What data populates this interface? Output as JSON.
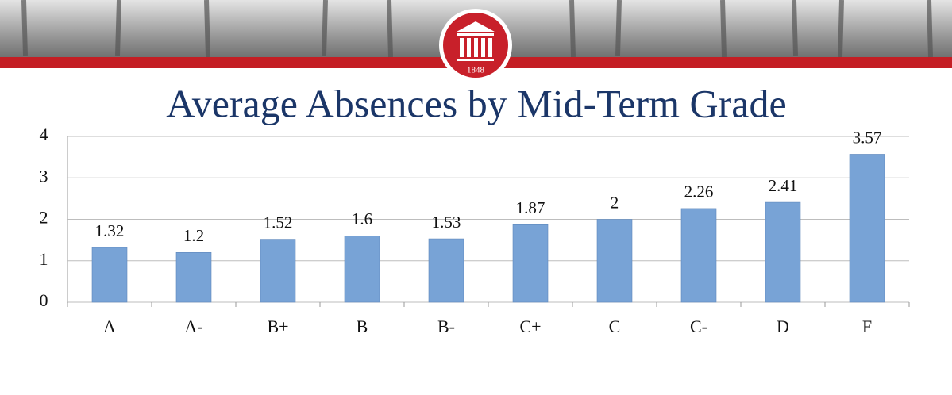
{
  "logo_text": "1848",
  "chart_data": {
    "type": "bar",
    "title": "Average Absences by Mid-Term Grade",
    "categories": [
      "A",
      "A-",
      "B+",
      "B",
      "B-",
      "C+",
      "C",
      "C-",
      "D",
      "F"
    ],
    "values": [
      1.32,
      1.2,
      1.52,
      1.6,
      1.53,
      1.87,
      2,
      2.26,
      2.41,
      3.57
    ],
    "color": "#78a3d6",
    "ylim": [
      0,
      4
    ],
    "yticks": [
      0,
      1,
      2,
      3,
      4
    ],
    "grid": true
  }
}
